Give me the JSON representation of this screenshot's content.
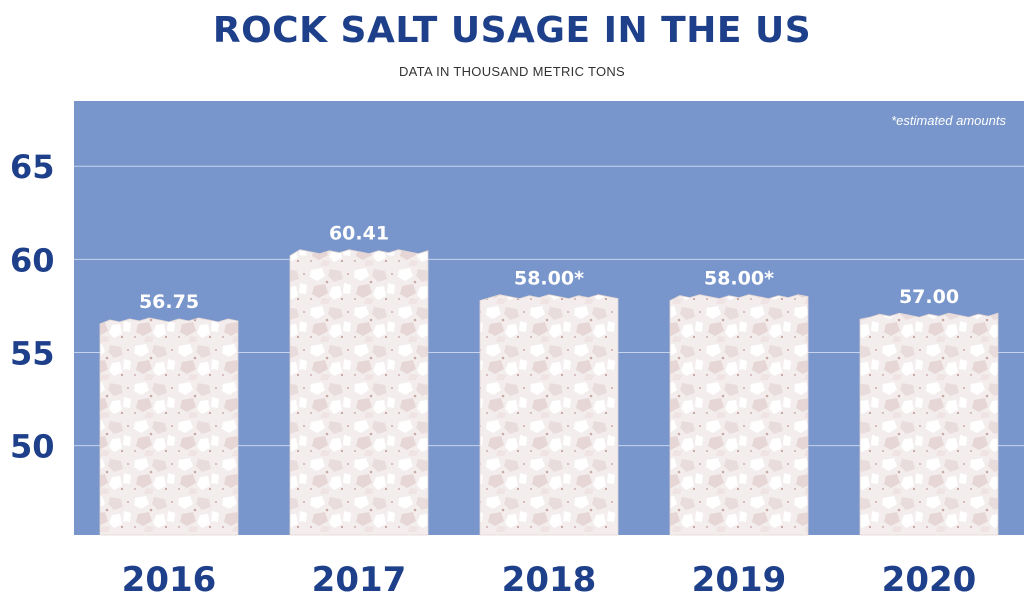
{
  "chart_data": {
    "type": "bar",
    "title": "ROCK SALT USAGE IN THE US",
    "subtitle": "DATA IN THOUSAND METRIC TONS",
    "note": "*estimated amounts",
    "categories": [
      "2016",
      "2017",
      "2018",
      "2019",
      "2020"
    ],
    "values": [
      56.75,
      60.41,
      58.0,
      58.0,
      57.0
    ],
    "data_labels": [
      "56.75",
      "60.41",
      "58.00*",
      "58.00*",
      "57.00"
    ],
    "y_ticks": [
      50,
      55,
      60,
      65
    ],
    "ylim": [
      45.2,
      68.5
    ],
    "grid": true,
    "colors": {
      "plot_background": "#7896cb",
      "gridline": "#c5d3ec",
      "bar": "#f4efee",
      "title": "#1e3f8a",
      "axis_labels": "#1e3f8a",
      "data_labels": "#ffffff"
    }
  }
}
